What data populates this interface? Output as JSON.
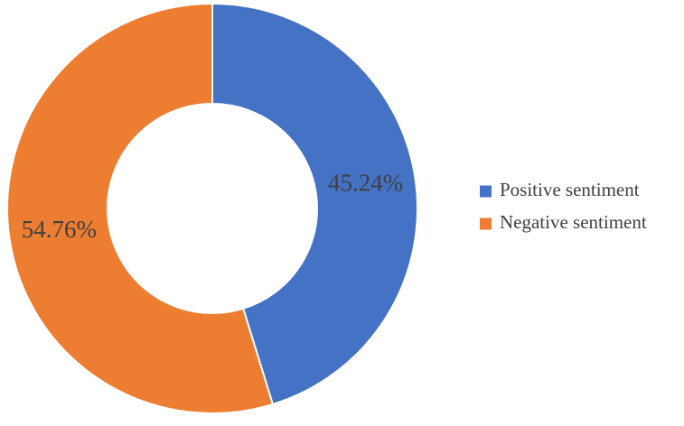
{
  "chart_data": {
    "type": "pie",
    "style": "donut",
    "categories": [
      "Positive sentiment",
      "Negative sentiment"
    ],
    "values": [
      45.24,
      54.76
    ],
    "labels": [
      "45.24%",
      "54.76%"
    ],
    "colors": [
      "#4472C4",
      "#ED7D31"
    ],
    "legend_position": "right",
    "title": ""
  }
}
